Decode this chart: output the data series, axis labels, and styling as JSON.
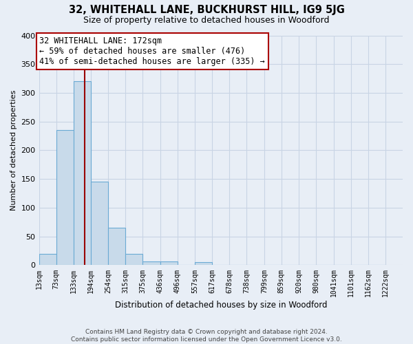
{
  "title": "32, WHITEHALL LANE, BUCKHURST HILL, IG9 5JG",
  "subtitle": "Size of property relative to detached houses in Woodford",
  "xlabel": "Distribution of detached houses by size in Woodford",
  "ylabel": "Number of detached properties",
  "footer_line1": "Contains HM Land Registry data © Crown copyright and database right 2024.",
  "footer_line2": "Contains public sector information licensed under the Open Government Licence v3.0.",
  "bin_edges": [
    13,
    73,
    133,
    194,
    254,
    315,
    375,
    436,
    496,
    557,
    617,
    678,
    738,
    799,
    859,
    920,
    980,
    1041,
    1101,
    1162,
    1222
  ],
  "bar_heights": [
    20,
    235,
    320,
    145,
    65,
    20,
    7,
    6,
    0,
    5,
    0,
    0,
    0,
    0,
    0,
    0,
    0,
    0,
    0,
    0
  ],
  "bar_color": "#c8daea",
  "bar_edge_color": "#6aaad4",
  "property_size": 172,
  "red_line_color": "#990000",
  "annotation_text": "32 WHITEHALL LANE: 172sqm\n← 59% of detached houses are smaller (476)\n41% of semi-detached houses are larger (335) →",
  "annotation_box_color": "#ffffff",
  "annotation_box_edge_color": "#aa0000",
  "grid_color": "#c8d4e4",
  "background_color": "#e8eef6",
  "plot_bg_color": "#e8eef6",
  "ylim": [
    0,
    400
  ],
  "yticks": [
    0,
    50,
    100,
    150,
    200,
    250,
    300,
    350,
    400
  ],
  "title_fontsize": 10.5,
  "subtitle_fontsize": 9,
  "annotation_fontsize": 8.5,
  "ylabel_fontsize": 8,
  "xlabel_fontsize": 8.5,
  "tick_fontsize": 7
}
